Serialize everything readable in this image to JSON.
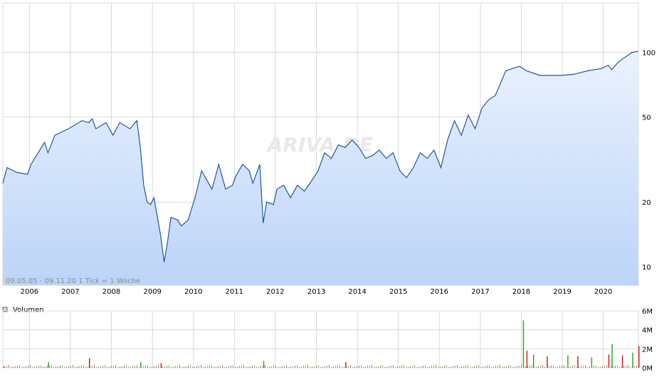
{
  "chart_data": [
    {
      "type": "area",
      "scale": "log",
      "ylim": [
        8.2,
        170
      ],
      "xlim": [
        "2005-05-09",
        "2020-11-09"
      ],
      "grid": true,
      "watermark": "ARIVA.DE",
      "footer": "09.05.05 - 09.11.20   1 Tick = 1 Woche",
      "colors": {
        "line": "#2255a4",
        "fill_top": "#eaf2fe",
        "fill_bottom": "#bcd4f8",
        "grid": "#d9d9d9"
      },
      "x_tick_labels": [
        "2006",
        "2007",
        "2008",
        "2009",
        "2010",
        "2011",
        "2012",
        "2013",
        "2014",
        "2015",
        "2016",
        "2017",
        "2018",
        "2019",
        "2020"
      ],
      "y_tick_labels": [
        "10",
        "20",
        "50",
        "100"
      ],
      "series": [
        {
          "x": [
            "2005-05-09",
            "2005-06",
            "2005-09",
            "2005-12",
            "2006-01",
            "2006-05",
            "2006-06",
            "2006-08",
            "2006-12",
            "2007-04",
            "2007-06",
            "2007-07",
            "2007-08",
            "2007-11",
            "2008-01",
            "2008-03",
            "2008-06",
            "2008-08",
            "2008-09",
            "2008-10",
            "2008-11",
            "2008-12",
            "2009-01",
            "2009-03",
            "2009-04",
            "2009-05",
            "2009-06",
            "2009-08",
            "2009-09",
            "2009-11",
            "2010-01",
            "2010-03",
            "2010-06",
            "2010-08",
            "2010-10",
            "2010-12",
            "2011-01",
            "2011-03",
            "2011-05",
            "2011-06",
            "2011-08",
            "2011-09",
            "2011-10",
            "2011-12",
            "2012-01",
            "2012-03",
            "2012-05",
            "2012-07",
            "2012-09",
            "2012-11",
            "2013-01",
            "2013-03",
            "2013-05",
            "2013-07",
            "2013-09",
            "2013-11",
            "2014-01",
            "2014-03",
            "2014-05",
            "2014-07",
            "2014-09",
            "2014-11",
            "2015-01",
            "2015-03",
            "2015-05",
            "2015-07",
            "2015-09",
            "2015-11",
            "2016-01",
            "2016-03",
            "2016-05",
            "2016-07",
            "2016-09",
            "2016-11",
            "2017-01",
            "2017-03",
            "2017-05",
            "2017-07",
            "2017-08",
            "2017-10",
            "2017-12",
            "2018-02",
            "2018-06",
            "2018-12",
            "2019-04",
            "2019-08",
            "2019-12",
            "2020-02",
            "2020-03",
            "2020-05",
            "2020-07",
            "2020-09",
            "2020-11-09"
          ],
          "y": [
            24.5,
            29,
            27.5,
            27,
            30,
            38,
            34,
            41,
            44,
            48,
            47,
            49,
            44,
            47,
            41,
            47,
            44,
            48,
            36,
            24,
            20,
            19.5,
            21,
            14,
            10.5,
            13,
            17,
            16.5,
            15.5,
            16.5,
            21,
            28,
            23,
            30,
            23,
            24,
            26.5,
            30,
            28,
            24.5,
            30,
            16,
            20,
            19.5,
            23,
            24,
            21,
            24,
            22.5,
            25,
            28,
            34,
            32,
            37,
            36,
            39,
            36,
            32,
            33,
            35,
            32,
            34,
            28,
            26,
            29,
            34,
            32,
            35,
            29,
            39,
            48,
            41,
            51,
            44,
            55,
            60,
            63,
            75,
            82,
            84,
            86,
            82,
            78,
            78,
            79,
            82,
            84,
            87,
            83,
            90,
            95,
            100,
            101
          ]
        }
      ]
    },
    {
      "type": "bar",
      "legend": "Volumen",
      "y_tick_labels": [
        "0M",
        "2M",
        "4M",
        "6M"
      ],
      "ylim": [
        0,
        6
      ],
      "unit": "M",
      "colors": {
        "up": "#2eaa2e",
        "down": "#d02020"
      },
      "x": [
        "2005-05-09",
        "2006-06",
        "2007-06",
        "2008-09",
        "2009-03",
        "2011-09",
        "2013-09",
        "2018-01",
        "2018-02",
        "2018-04",
        "2018-08",
        "2019-02",
        "2019-05",
        "2019-09",
        "2020-02",
        "2020-03",
        "2020-06",
        "2020-09",
        "2020-11-09"
      ],
      "values": [
        0.1,
        0.6,
        1.0,
        0.6,
        0.5,
        0.7,
        0.6,
        5.0,
        1.8,
        1.4,
        1.2,
        1.3,
        1.2,
        1.1,
        1.4,
        2.5,
        1.3,
        1.6,
        2.3
      ]
    }
  ]
}
